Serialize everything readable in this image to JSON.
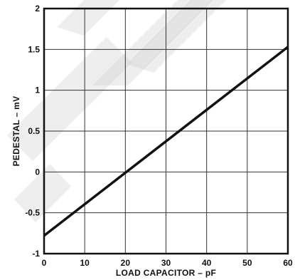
{
  "chart_data": {
    "type": "line",
    "xlabel": "LOAD CAPACITOR – pF",
    "ylabel": "PEDESTAL – mV",
    "xlim": [
      0,
      60
    ],
    "ylim": [
      -1,
      2
    ],
    "x_ticks": [
      0,
      10,
      20,
      30,
      40,
      50,
      60
    ],
    "x_tick_labels": [
      "0",
      "10",
      "20",
      "30",
      "40",
      "50",
      "60"
    ],
    "y_ticks": [
      -1,
      -0.5,
      0,
      0.5,
      1,
      1.5,
      2
    ],
    "y_tick_labels": [
      "-1",
      "-0.5",
      "0",
      "0.5",
      "1",
      "1.5",
      "2"
    ],
    "grid": true,
    "series": [
      {
        "x": [
          0,
          60
        ],
        "y": [
          -0.78,
          1.53
        ]
      }
    ]
  },
  "colors": {
    "line": "#111111",
    "grid": "#333333",
    "watermark": "#cfcfcf"
  }
}
